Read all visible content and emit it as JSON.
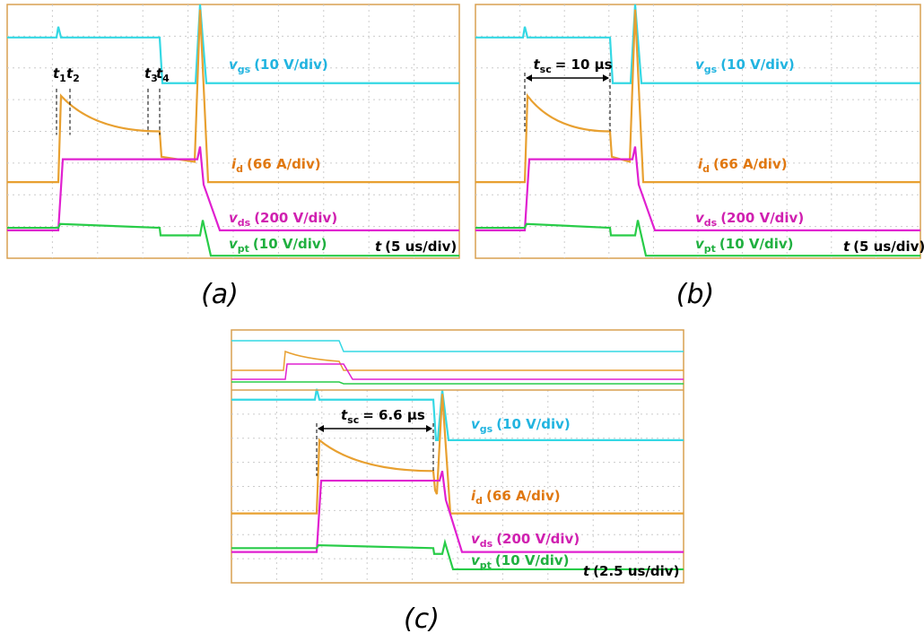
{
  "panels": [
    {
      "caption": "(a)",
      "traces": [
        {
          "symbol": "v",
          "sub": "gs",
          "scale": "(10 V/div)"
        },
        {
          "symbol": "i",
          "sub": "d",
          "scale": "(66 A/div)"
        },
        {
          "symbol": "v",
          "sub": "ds",
          "scale": "(200 V/div)"
        },
        {
          "symbol": "v",
          "sub": "pt",
          "scale": "(10 V/div)"
        }
      ],
      "time": {
        "symbol": "t",
        "scale": "(5 us/div)"
      },
      "markers": [
        {
          "symbol": "t",
          "sub": "1"
        },
        {
          "symbol": "t",
          "sub": "2"
        },
        {
          "symbol": "t",
          "sub": "3"
        },
        {
          "symbol": "t",
          "sub": "4"
        }
      ]
    },
    {
      "caption": "(b)",
      "traces": [
        {
          "symbol": "v",
          "sub": "gs",
          "scale": "(10 V/div)"
        },
        {
          "symbol": "i",
          "sub": "d",
          "scale": "(66 A/div)"
        },
        {
          "symbol": "v",
          "sub": "ds",
          "scale": "(200 V/div)"
        },
        {
          "symbol": "v",
          "sub": "pt",
          "scale": "(10 V/div)"
        }
      ],
      "time": {
        "symbol": "t",
        "scale": "(5 us/div)"
      },
      "tsc": {
        "symbol": "t",
        "sub": "sc",
        "text": "= 10 µs"
      }
    },
    {
      "caption": "(c)",
      "traces": [
        {
          "symbol": "v",
          "sub": "gs",
          "scale": "(10 V/div)"
        },
        {
          "symbol": "i",
          "sub": "d",
          "scale": "(66 A/div)"
        },
        {
          "symbol": "v",
          "sub": "ds",
          "scale": "(200 V/div)"
        },
        {
          "symbol": "v",
          "sub": "pt",
          "scale": "(10 V/div)"
        }
      ],
      "time": {
        "symbol": "t",
        "scale": "(2.5 us/div)"
      },
      "tsc": {
        "symbol": "t",
        "sub": "sc",
        "text": "= 6.6 µs"
      }
    }
  ]
}
